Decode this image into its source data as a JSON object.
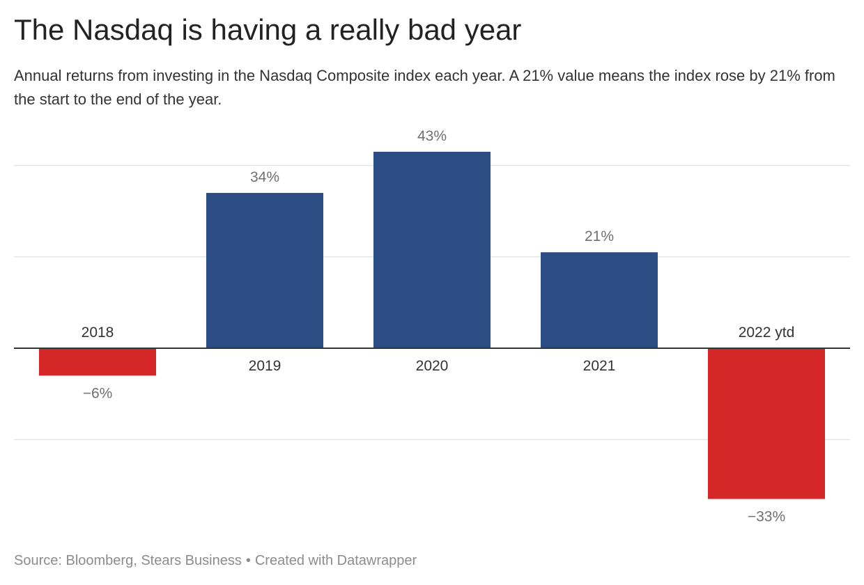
{
  "header": {
    "title": "The Nasdaq is having a really bad year",
    "subtitle": "Annual returns from investing in the Nasdaq Composite index each year. A 21% value means the index rose by 21% from the start to the end of the year."
  },
  "chart_data": {
    "type": "bar",
    "categories": [
      "2018",
      "2019",
      "2020",
      "2021",
      "2022 ytd"
    ],
    "values": [
      -6,
      34,
      43,
      21,
      -33
    ],
    "value_labels": [
      "−6%",
      "34%",
      "43%",
      "21%",
      "−33%"
    ],
    "gridlines": [
      -20,
      20,
      40
    ],
    "ylim": [
      -35,
      45
    ],
    "colors": {
      "positive": "#2c4c84",
      "negative": "#d62728",
      "gridline": "#e5e5e5",
      "baseline": "#333333",
      "value_label": "#707070",
      "category_label": "#333333"
    }
  },
  "footer": {
    "source": "Source: Bloomberg, Stears Business",
    "separator": "•",
    "credit": "Created with Datawrapper"
  }
}
